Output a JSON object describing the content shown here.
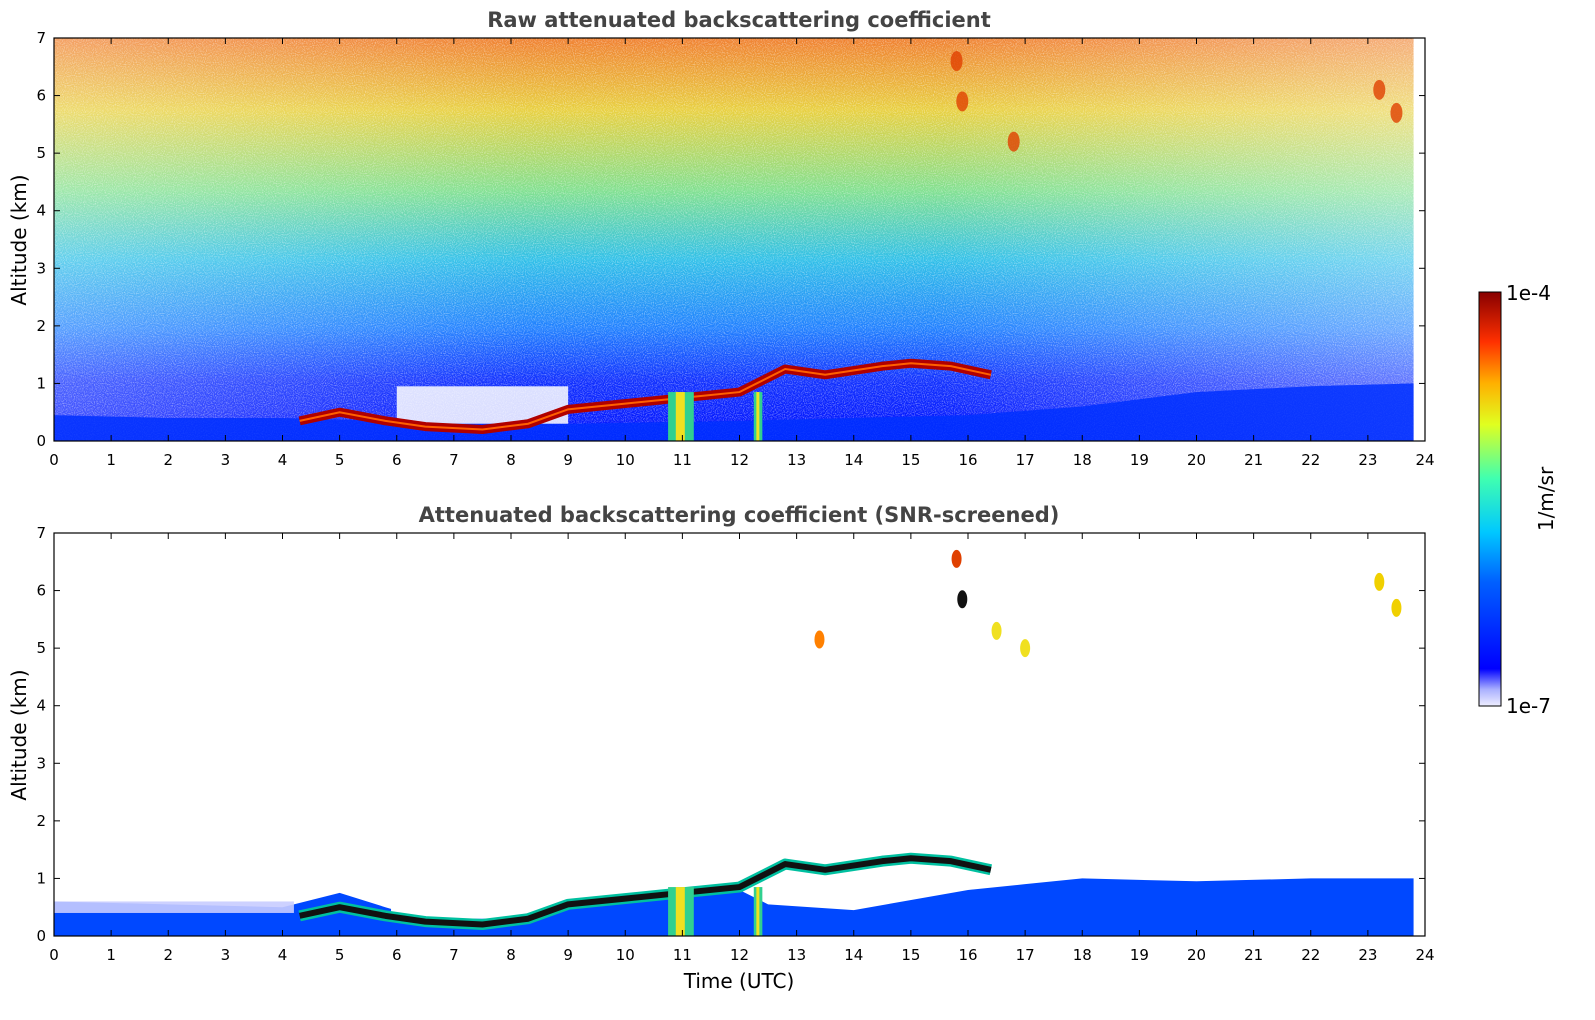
{
  "chart_data": [
    {
      "type": "heatmap",
      "title": "Raw attenuated backscattering coefficient",
      "xlabel": "",
      "ylabel": "Altitude (km)",
      "xlim": [
        0,
        24
      ],
      "ylim": [
        0,
        7
      ],
      "x_ticks": [
        "0",
        "1",
        "2",
        "3",
        "4",
        "5",
        "6",
        "7",
        "8",
        "9",
        "10",
        "11",
        "12",
        "13",
        "14",
        "15",
        "16",
        "17",
        "18",
        "19",
        "20",
        "21",
        "22",
        "23",
        "24"
      ],
      "y_ticks": [
        "0",
        "1",
        "2",
        "3",
        "4",
        "5",
        "6",
        "7"
      ],
      "data_end_time": 23.8,
      "cloud_base_layer": [
        {
          "t": 4.3,
          "alt": 0.35
        },
        {
          "t": 5.0,
          "alt": 0.5
        },
        {
          "t": 5.8,
          "alt": 0.35
        },
        {
          "t": 6.5,
          "alt": 0.25
        },
        {
          "t": 7.5,
          "alt": 0.2
        },
        {
          "t": 8.3,
          "alt": 0.3
        },
        {
          "t": 9.0,
          "alt": 0.55
        },
        {
          "t": 10.0,
          "alt": 0.65
        },
        {
          "t": 11.0,
          "alt": 0.75
        },
        {
          "t": 12.0,
          "alt": 0.85
        },
        {
          "t": 12.8,
          "alt": 1.25
        },
        {
          "t": 13.5,
          "alt": 1.15
        },
        {
          "t": 14.5,
          "alt": 1.3
        },
        {
          "t": 15.0,
          "alt": 1.35
        },
        {
          "t": 15.7,
          "alt": 1.3
        },
        {
          "t": 16.4,
          "alt": 1.15
        }
      ],
      "precipitation_columns": [
        {
          "t_start": 10.75,
          "t_end": 11.2
        },
        {
          "t_start": 12.25,
          "t_end": 12.4
        }
      ],
      "high_cloud_features": [
        {
          "t": 15.8,
          "alt": 6.6
        },
        {
          "t": 15.9,
          "alt": 5.9
        },
        {
          "t": 16.8,
          "alt": 5.2
        },
        {
          "t": 23.2,
          "alt": 6.1
        },
        {
          "t": 23.5,
          "alt": 5.7
        }
      ]
    },
    {
      "type": "heatmap",
      "title": "Attenuated backscattering coefficient (SNR-screened)",
      "xlabel": "Time (UTC)",
      "ylabel": "Altitude (km)",
      "xlim": [
        0,
        24
      ],
      "ylim": [
        0,
        7
      ],
      "x_ticks": [
        "0",
        "1",
        "2",
        "3",
        "4",
        "5",
        "6",
        "7",
        "8",
        "9",
        "10",
        "11",
        "12",
        "13",
        "14",
        "15",
        "16",
        "17",
        "18",
        "19",
        "20",
        "21",
        "22",
        "23",
        "24"
      ],
      "y_ticks": [
        "0",
        "1",
        "2",
        "3",
        "4",
        "5",
        "6",
        "7"
      ],
      "data_end_time": 23.8
    }
  ],
  "colorbar": {
    "max_label": "1e-4",
    "min_label": "1e-7",
    "unit_label": "1/m/sr",
    "colormap": "jet",
    "scale": "log"
  }
}
